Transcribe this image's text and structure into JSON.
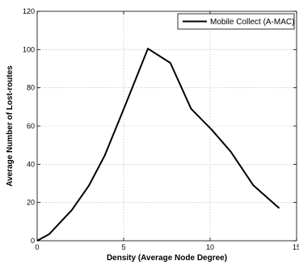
{
  "chart_data": {
    "type": "line",
    "title": "",
    "xlabel": "Density (Average Node Degree)",
    "ylabel": "Average Number of Lost-routes",
    "xlim": [
      0,
      15
    ],
    "ylim": [
      0,
      120
    ],
    "xticks": [
      0,
      5,
      10,
      15
    ],
    "yticks": [
      0,
      20,
      40,
      60,
      80,
      100,
      120
    ],
    "xtick_labels": [
      "0",
      "5",
      "10",
      "15"
    ],
    "ytick_labels": [
      "0",
      "20",
      "40",
      "60",
      "80",
      "100",
      "120"
    ],
    "grid": true,
    "legend_position": "top-right",
    "series": [
      {
        "name": "Mobile Collect (A-MAC)",
        "color": "#000000",
        "x": [
          0,
          0.7,
          2.0,
          3.0,
          3.9,
          5.1,
          6.4,
          7.7,
          8.9,
          10.1,
          11.2,
          12.5,
          14.0
        ],
        "y": [
          0,
          3.5,
          16,
          29,
          44.5,
          71,
          100.5,
          93,
          69,
          58,
          46.5,
          29,
          17
        ]
      }
    ]
  }
}
